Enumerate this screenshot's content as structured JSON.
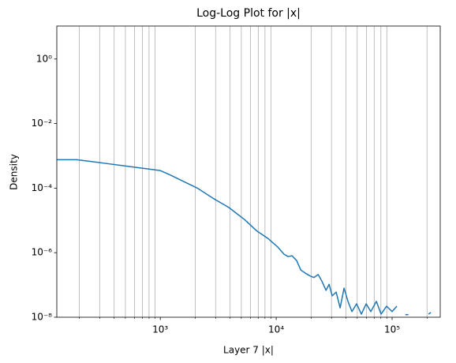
{
  "chart_data": {
    "type": "line",
    "title": "Log-Log Plot for |x|",
    "xlabel": "Layer 7 |x|",
    "ylabel": "Density",
    "xscale": "log",
    "yscale": "log",
    "xlim": [
      128,
      260000
    ],
    "ylim": [
      1e-08,
      10.5
    ],
    "xticks": [
      {
        "value": 1000,
        "label": "10³"
      },
      {
        "value": 10000,
        "label": "10⁴"
      },
      {
        "value": 100000,
        "label": "10⁵"
      }
    ],
    "yticks": [
      {
        "value": 1,
        "label": "10⁰"
      },
      {
        "value": 0.01,
        "label": "10⁻²"
      },
      {
        "value": 0.0001,
        "label": "10⁻⁴"
      },
      {
        "value": 1e-06,
        "label": "10⁻⁶"
      },
      {
        "value": 1e-08,
        "label": "10⁻⁸"
      }
    ],
    "x_minor_grid": [
      200,
      300,
      400,
      500,
      600,
      700,
      800,
      900,
      2000,
      3000,
      4000,
      5000,
      6000,
      7000,
      8000,
      9000,
      20000,
      30000,
      40000,
      50000,
      60000,
      70000,
      80000,
      90000,
      200000
    ],
    "grid": "x-minor",
    "series": [
      {
        "color": "#1f77b4",
        "x": [
          128,
          190,
          318,
          509,
          1000,
          1207,
          2090,
          2860,
          3910,
          5350,
          6760,
          8550,
          10300,
          11700,
          12650,
          13700,
          15000,
          16300,
          17900,
          19600,
          21200,
          23000,
          24800,
          26900,
          28600,
          30400,
          32900,
          35600,
          38500,
          41600,
          45000,
          49400,
          54300,
          59700,
          65500,
          73100,
          80300,
          89600,
          100000,
          109900,
          null,
          130000,
          138000,
          null,
          206000,
          216000
        ],
        "values": [
          0.00076,
          0.00076,
          0.0006,
          0.00048,
          0.00035,
          0.00026,
          0.0001,
          4.8e-05,
          2.5e-05,
          1.05e-05,
          4.8e-06,
          2.7e-06,
          1.5e-06,
          8.9e-07,
          7.6e-07,
          8e-07,
          5.7e-07,
          2.9e-07,
          2.3e-07,
          1.9e-07,
          1.7e-07,
          2.1e-07,
          1.3e-07,
          6.8e-08,
          1.05e-07,
          4.6e-08,
          6e-08,
          1.95e-08,
          8e-08,
          3.1e-08,
          1.5e-08,
          2.6e-08,
          1.25e-08,
          2.6e-08,
          1.5e-08,
          3.1e-08,
          1.25e-08,
          2.2e-08,
          1.5e-08,
          2.2e-08,
          null,
          1.2e-08,
          1.2e-08,
          null,
          1.25e-08,
          1.4e-08
        ]
      }
    ]
  }
}
